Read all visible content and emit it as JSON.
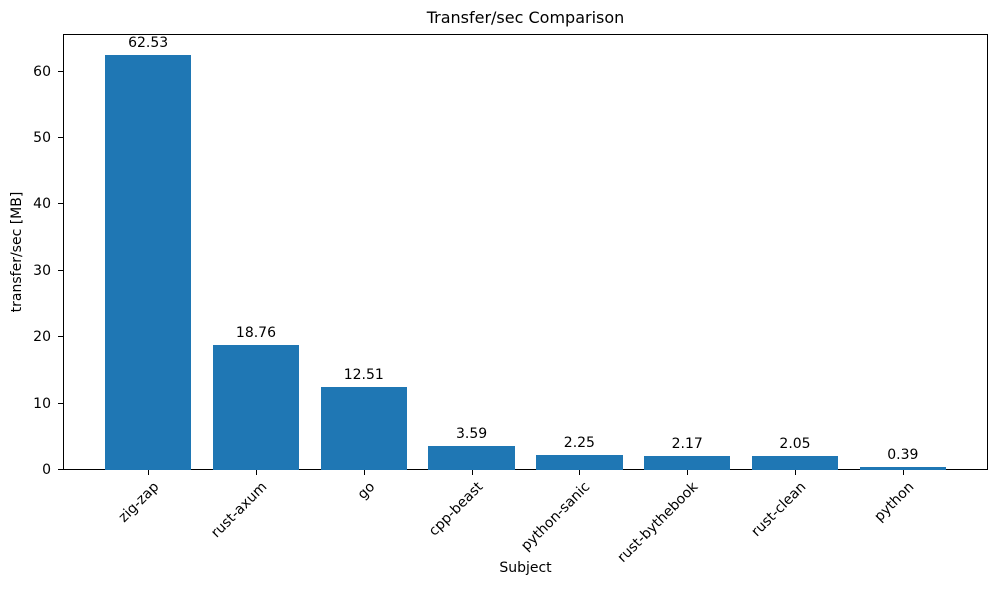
{
  "chart_data": {
    "type": "bar",
    "title": "Transfer/sec Comparison",
    "xlabel": "Subject",
    "ylabel": "transfer/sec [MB]",
    "categories": [
      "zig-zap",
      "rust-axum",
      "go",
      "cpp-beast",
      "python-sanic",
      "rust-bythebook",
      "rust-clean",
      "python"
    ],
    "values": [
      62.53,
      18.76,
      12.51,
      3.59,
      2.25,
      2.17,
      2.05,
      0.39
    ],
    "value_labels": [
      "62.53",
      "18.76",
      "12.51",
      "3.59",
      "2.25",
      "2.17",
      "2.05",
      "0.39"
    ],
    "yticks": [
      0,
      10,
      20,
      30,
      40,
      50,
      60
    ],
    "ylim": [
      0,
      65.66
    ],
    "bar_color": "#1f77b4",
    "axis_color": "#000000",
    "text_color": "#000000",
    "grid": false,
    "legend_position": "none"
  }
}
